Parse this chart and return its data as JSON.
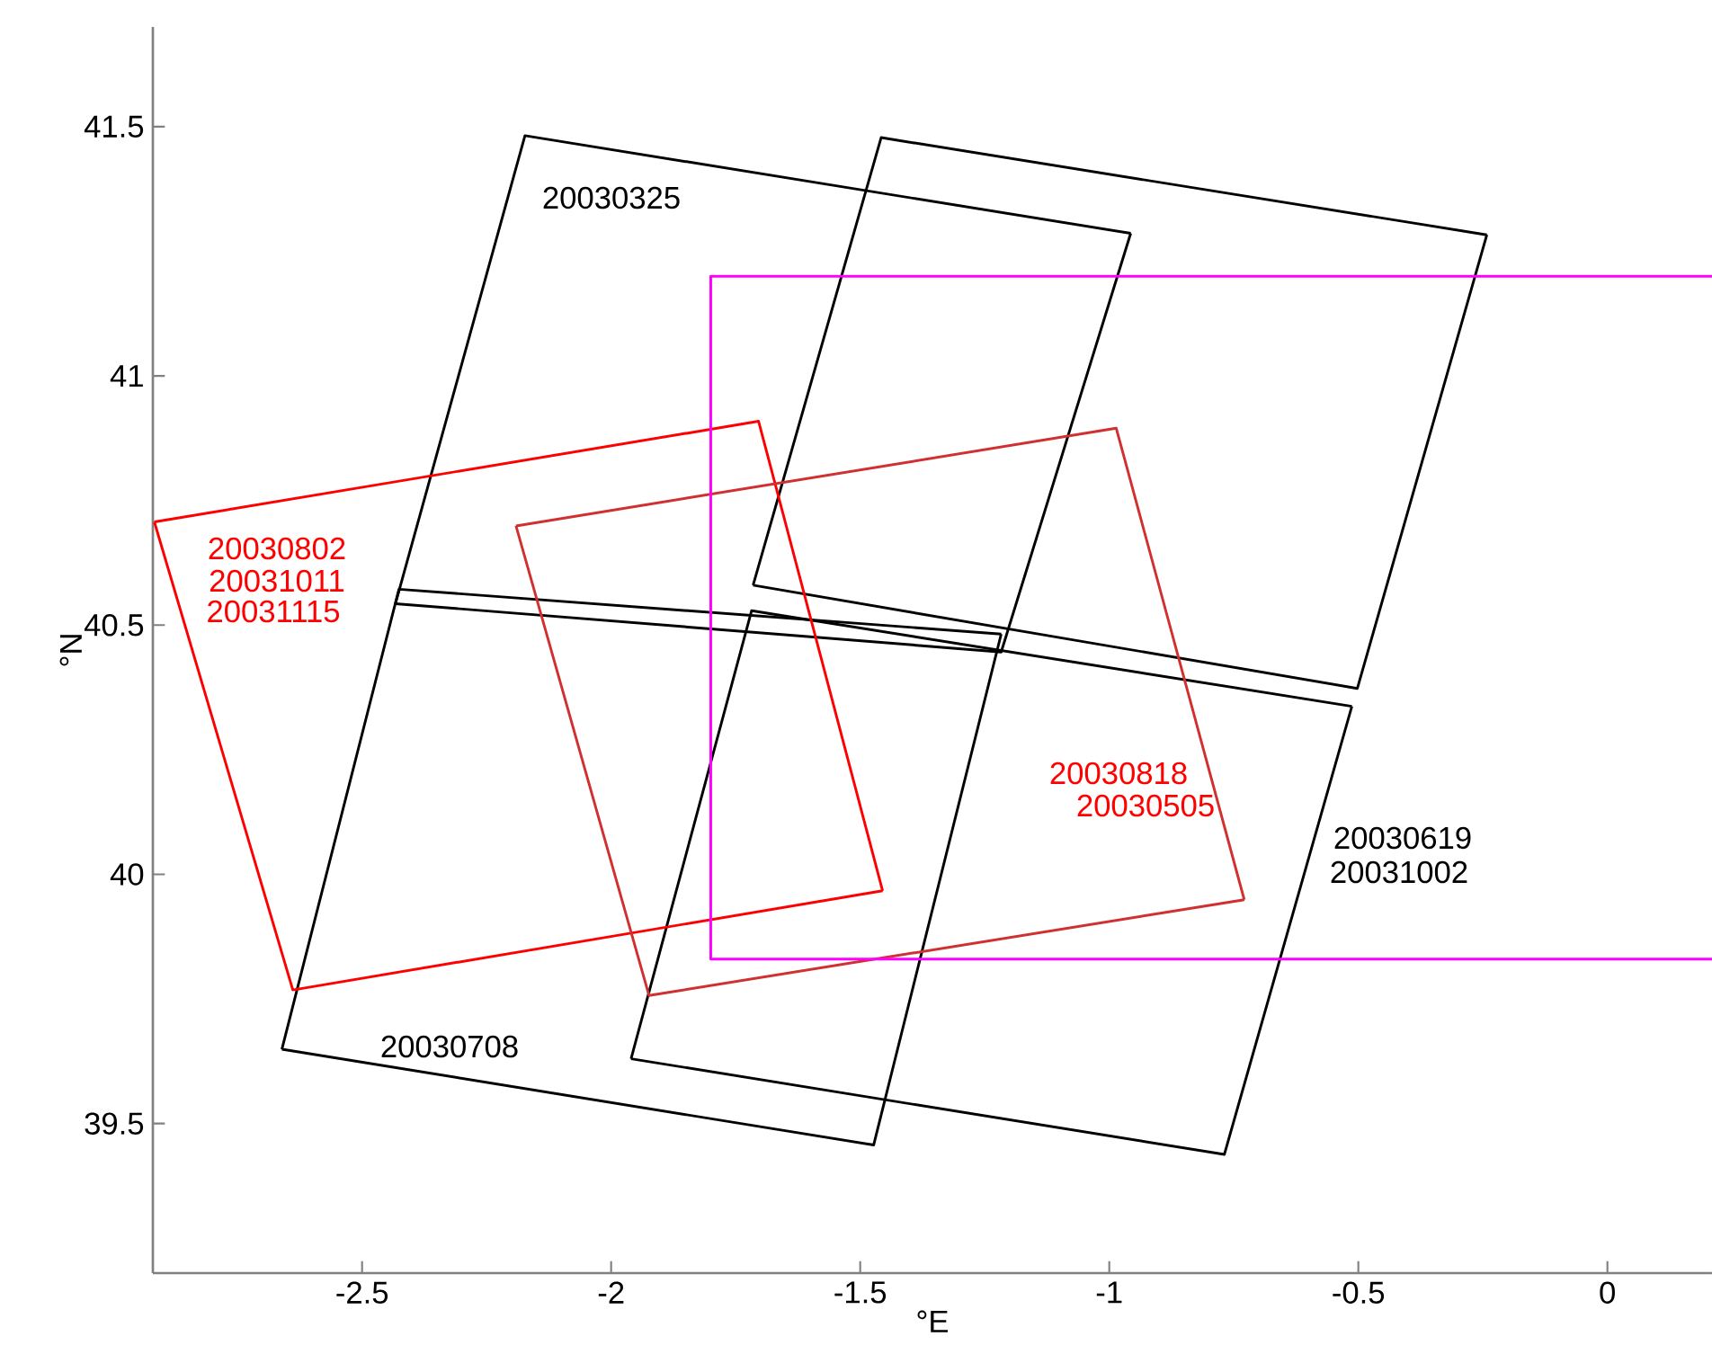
{
  "chart_data": {
    "type": "line",
    "xlabel": "°E",
    "ylabel": "°N",
    "xlim": [
      -2.92,
      0.21
    ],
    "ylim": [
      39.2,
      41.7
    ],
    "xticks": [
      -2.5,
      -2,
      -1.5,
      -1,
      -0.5,
      0
    ],
    "yticks": [
      39.5,
      40,
      40.5,
      41,
      41.5
    ],
    "grid": false,
    "series": [
      {
        "color": "#000000",
        "x": [
          -2.433,
          -2.173,
          -0.957
        ],
        "values": [
          40.543,
          41.482,
          41.286
        ]
      },
      {
        "color": "#000000",
        "x": [
          -2.433,
          -1.217,
          -0.957
        ],
        "values": [
          40.543,
          40.446,
          41.286
        ]
      },
      {
        "color": "#000000",
        "x": [
          -1.715,
          -1.458,
          -0.242
        ],
        "values": [
          40.58,
          41.478,
          41.283
        ]
      },
      {
        "color": "#000000",
        "x": [
          -1.715,
          -0.502,
          -0.242
        ],
        "values": [
          40.58,
          40.373,
          41.283
        ]
      },
      {
        "color": "#000000",
        "x": [
          -1.96,
          -1.718,
          -0.513
        ],
        "values": [
          39.63,
          40.529,
          40.337
        ]
      },
      {
        "color": "#000000",
        "x": [
          -1.96,
          -0.769,
          -0.513
        ],
        "values": [
          39.63,
          39.438,
          40.337
        ]
      },
      {
        "color": "#000000",
        "x": [
          -2.661,
          -2.426,
          -1.217
        ],
        "values": [
          39.649,
          40.572,
          40.482
        ]
      },
      {
        "color": "#000000",
        "x": [
          -2.661,
          -1.473,
          -1.217
        ],
        "values": [
          39.649,
          39.457,
          40.482
        ]
      },
      {
        "color": "#ff0000",
        "x": [
          -2.917,
          -1.704,
          -1.455
        ],
        "values": [
          40.707,
          40.909,
          39.967
        ]
      },
      {
        "color": "#ff0000",
        "x": [
          -2.917,
          -2.639,
          -1.455
        ],
        "values": [
          40.707,
          39.768,
          39.967
        ]
      },
      {
        "color": "#d03030",
        "x": [
          -2.191,
          -0.986,
          -0.729
        ],
        "values": [
          40.699,
          40.895,
          39.949
        ]
      },
      {
        "color": "#d03030",
        "x": [
          -2.191,
          -1.924,
          -0.729
        ],
        "values": [
          40.699,
          39.757,
          39.949
        ]
      },
      {
        "color": "#ff00ff",
        "x": [
          0.21,
          -1.8,
          -1.8,
          0.21
        ],
        "values": [
          41.2,
          41.2,
          39.83,
          39.83
        ]
      }
    ],
    "annotations": [
      "20030325",
      "20030708",
      "20030802",
      "20031011",
      "20031115",
      "20030818",
      "20030505",
      "20030619",
      "20031002"
    ]
  }
}
